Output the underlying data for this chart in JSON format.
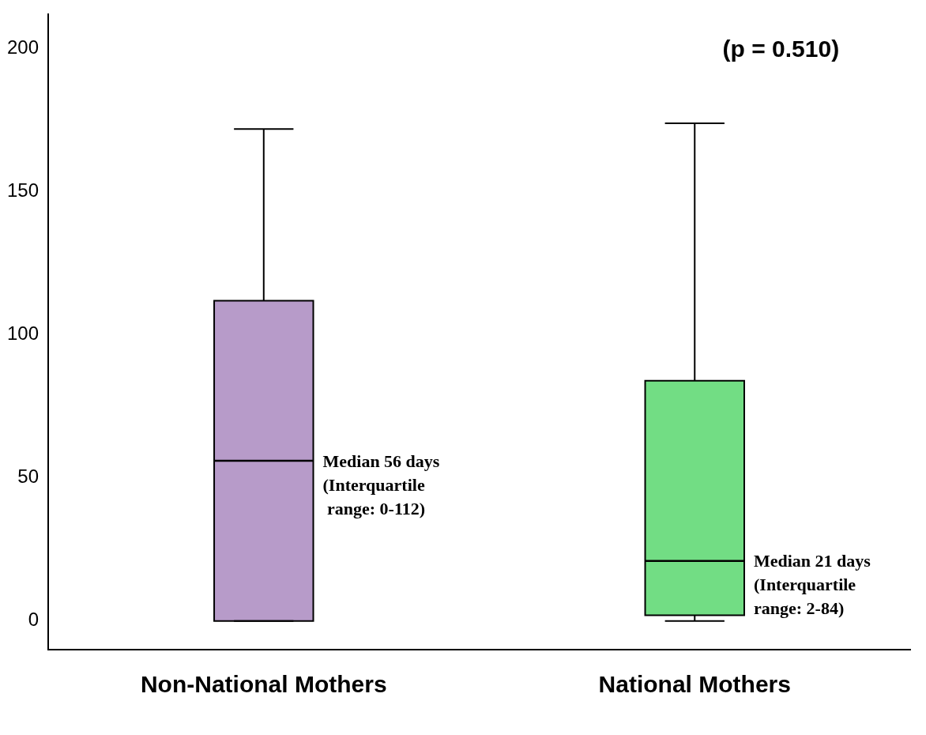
{
  "chart_data": {
    "type": "box",
    "categories": [
      "Non-National Mothers",
      "National Mothers"
    ],
    "boxes": [
      {
        "low": 0,
        "q1": 0,
        "median": 56,
        "q3": 112,
        "high": 172
      },
      {
        "low": 0,
        "q1": 2,
        "median": 21,
        "q3": 84,
        "high": 174
      }
    ],
    "colors": [
      "#b79bc9",
      "#72dd84"
    ],
    "ylim": [
      -10,
      212
    ],
    "yticks": [
      0,
      50,
      100,
      150,
      200
    ],
    "annotations": [
      "(p = 0.510)",
      "Median 56 days\n(Interquartile\n range: 0-112)",
      "Median 21 days\n(Interquartile\nrange: 2-84)"
    ]
  }
}
